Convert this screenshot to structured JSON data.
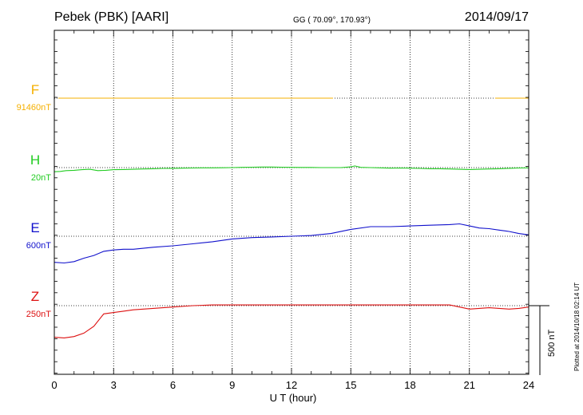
{
  "header": {
    "title": "Pebek (PBK)  [AARI]",
    "coords": "GG ( 70.09°, 170.93°)",
    "date": "2014/09/17"
  },
  "footer_note": "Plotted at 2014/10/18 02:14 UT",
  "colors": {
    "F": "#f5b000",
    "H": "#22cc22",
    "E": "#1010cc",
    "Z": "#dd1010",
    "grid": "#000000"
  },
  "chart_data": {
    "type": "line",
    "xlabel": "U T (hour)",
    "xlim": [
      0,
      24
    ],
    "xticks": [
      0,
      3,
      6,
      9,
      12,
      15,
      18,
      21,
      24
    ],
    "xtick_labels": [
      "0",
      "3",
      "6",
      "9",
      "12",
      "15",
      "18",
      "21",
      "24"
    ],
    "scale_bar_label": "500 nT",
    "scale_bar_nT": 500,
    "series": [
      {
        "name": "F",
        "baseline_label": "91460nT",
        "x": [
          0.2,
          1,
          2,
          3,
          4,
          5,
          6,
          7,
          8,
          9,
          10,
          11,
          12,
          13,
          14.1
        ],
        "y": [
          0,
          0,
          0,
          0,
          0,
          0,
          0,
          0,
          0,
          0,
          0,
          0,
          0,
          0,
          0
        ],
        "x2": [
          22.3,
          23,
          24
        ],
        "y2": [
          0,
          0,
          0
        ]
      },
      {
        "name": "H",
        "baseline_label": "20nT",
        "x": [
          0,
          0.3,
          0.6,
          1,
          1.4,
          1.8,
          2.2,
          2.6,
          3,
          3.5,
          4,
          4.5,
          5,
          5.5,
          6,
          6.5,
          7,
          7.5,
          8,
          8.5,
          9,
          9.5,
          10,
          10.5,
          11,
          11.5,
          12,
          12.5,
          13,
          13.5,
          14,
          14.5,
          15,
          15.2,
          15.5,
          16,
          16.5,
          17,
          17.5,
          18,
          18.5,
          19,
          19.5,
          20,
          20.5,
          21,
          21.5,
          22,
          22.5,
          23,
          23.5,
          24
        ],
        "y": [
          -30,
          -28,
          -22,
          -20,
          -15,
          -12,
          -22,
          -20,
          -15,
          -14,
          -12,
          -10,
          -8,
          -6,
          -5,
          -4,
          -3,
          -2,
          -2,
          -1,
          0,
          2,
          3,
          4,
          4,
          3,
          2,
          1,
          1,
          0,
          0,
          0,
          5,
          12,
          2,
          0,
          -2,
          -4,
          -3,
          -4,
          -6,
          -8,
          -8,
          -10,
          -12,
          -14,
          -12,
          -10,
          -8,
          -5,
          -3,
          -2
        ]
      },
      {
        "name": "E",
        "baseline_label": "600nT",
        "x": [
          0,
          0.5,
          1,
          1.5,
          2,
          2.5,
          3,
          3.5,
          4,
          5,
          6,
          7,
          8,
          9,
          10,
          11,
          12,
          13,
          14,
          15,
          16,
          17,
          18,
          19,
          20,
          20.5,
          21,
          21.5,
          22,
          22.5,
          23,
          23.5,
          24
        ],
        "y": [
          -190,
          -195,
          -185,
          -160,
          -140,
          -110,
          -100,
          -95,
          -95,
          -80,
          -70,
          -55,
          -40,
          -20,
          -10,
          -5,
          0,
          5,
          20,
          50,
          70,
          70,
          75,
          80,
          85,
          90,
          75,
          60,
          55,
          45,
          35,
          20,
          10
        ]
      },
      {
        "name": "Z",
        "baseline_label": "250nT",
        "x": [
          0,
          0.5,
          1,
          1.5,
          2,
          2.5,
          3,
          3.5,
          4,
          5,
          6,
          7,
          8,
          9,
          10,
          11,
          12,
          13,
          14,
          15,
          16,
          17,
          18,
          19,
          20,
          20.5,
          21,
          21.5,
          22,
          22.5,
          23,
          23.5,
          24
        ],
        "y": [
          -230,
          -235,
          -225,
          -200,
          -150,
          -60,
          -50,
          -40,
          -30,
          -20,
          -10,
          0,
          5,
          5,
          5,
          5,
          5,
          5,
          5,
          5,
          5,
          5,
          5,
          5,
          5,
          -10,
          -25,
          -20,
          -15,
          -20,
          -25,
          -20,
          -10
        ]
      }
    ]
  }
}
